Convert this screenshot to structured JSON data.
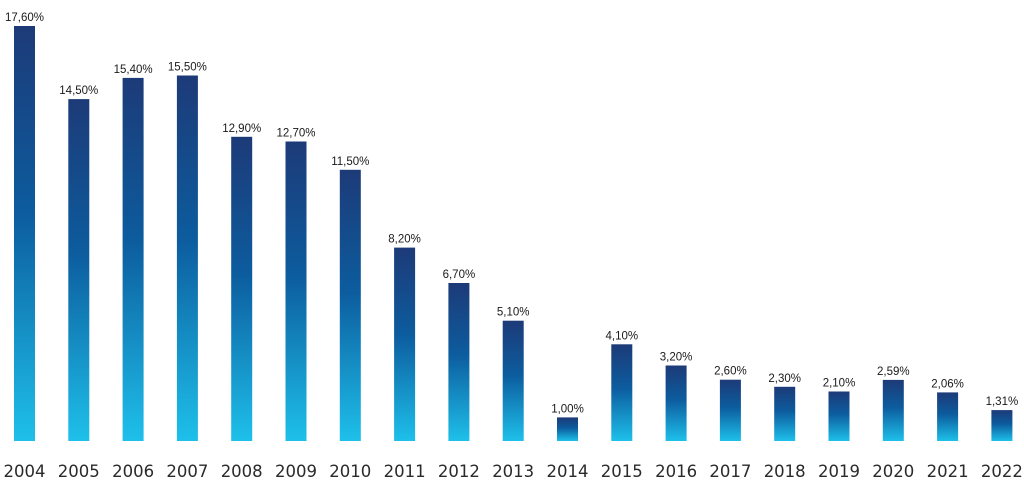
{
  "chart_data": {
    "type": "bar",
    "title": "",
    "xlabel": "",
    "ylabel": "",
    "categories": [
      "2004",
      "2005",
      "2006",
      "2007",
      "2008",
      "2009",
      "2010",
      "2011",
      "2012",
      "2013",
      "2014",
      "2015",
      "2016",
      "2017",
      "2018",
      "2019",
      "2020",
      "2021",
      "2022"
    ],
    "values": [
      17.6,
      14.5,
      15.4,
      15.5,
      12.9,
      12.7,
      11.5,
      8.2,
      6.7,
      5.1,
      1.0,
      4.1,
      3.2,
      2.6,
      2.3,
      2.1,
      2.59,
      2.06,
      1.31
    ],
    "value_labels": [
      "17,60%",
      "14,50%",
      "15,40%",
      "15,50%",
      "12,90%",
      "12,70%",
      "11,50%",
      "8,20%",
      "6,70%",
      "5,10%",
      "1,00%",
      "4,10%",
      "3,20%",
      "2,60%",
      "2,30%",
      "2,10%",
      "2,59%",
      "2,06%",
      "1,31%"
    ],
    "ylim": [
      0,
      17.6
    ],
    "grid": false,
    "legend": "none",
    "colors": {
      "bar_top": "#1d3a78",
      "bar_mid": "#0c5c9e",
      "bar_bottom": "#1ec0ea"
    }
  }
}
